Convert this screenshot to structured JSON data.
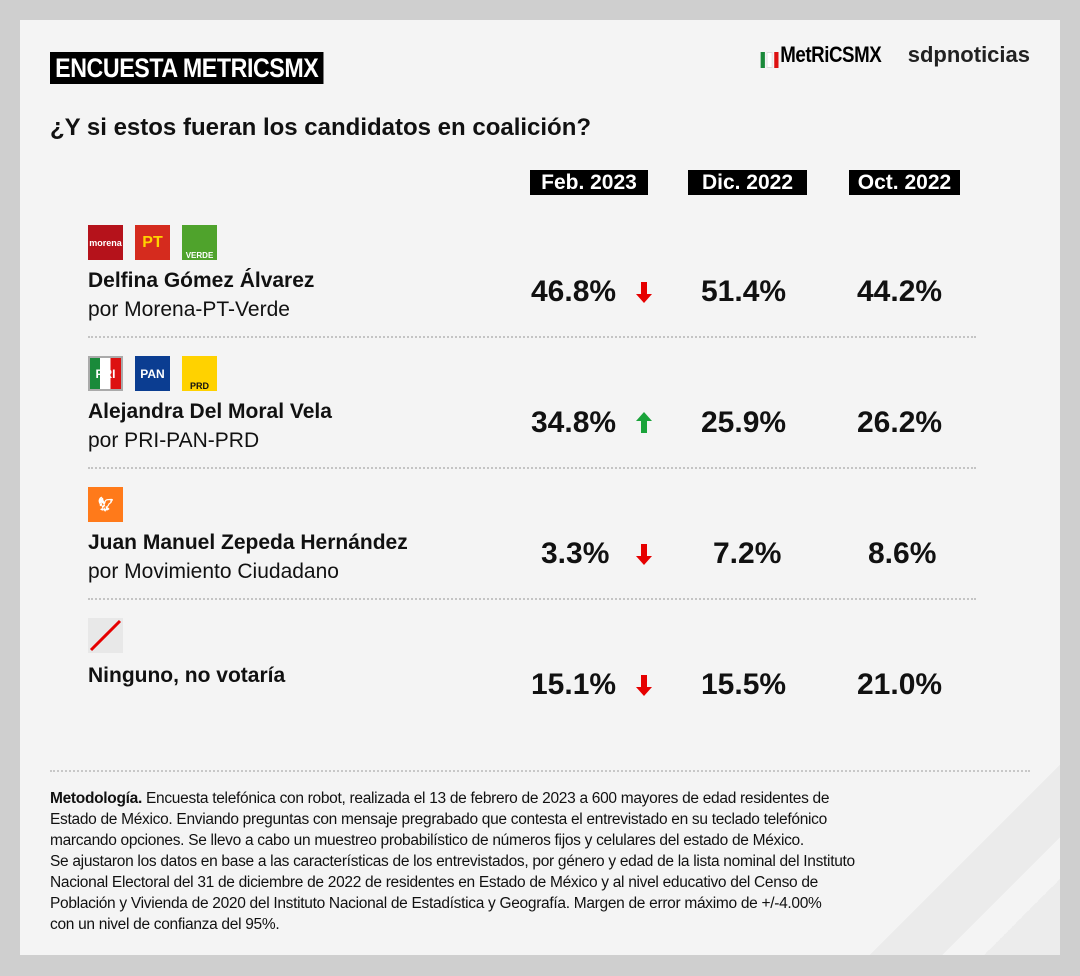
{
  "header": {
    "badge": "ENCUESTA METRICSMX",
    "logo_metrics": "MetRiCSMX",
    "logo_sdp": "sdpnoticias",
    "subtitle": "¿Y si estos fueran los candidatos en coalición?"
  },
  "colors": {
    "down": "#e60000",
    "up": "#1aa33a",
    "badge_bg": "#000000",
    "background": "#f4f4f4"
  },
  "chart_data": {
    "type": "table",
    "title": "¿Y si estos fueran los candidatos en coalición?",
    "columns": [
      "Feb. 2023",
      "Dic. 2022",
      "Oct. 2022"
    ],
    "rows": [
      {
        "name": "Delfina Gómez Álvarez",
        "party": "por Morena-PT-Verde",
        "logos": [
          "morena",
          "PT",
          "VERDE"
        ],
        "values": [
          "46.8%",
          "51.4%",
          "44.2%"
        ],
        "trend": "down"
      },
      {
        "name": "Alejandra Del Moral Vela",
        "party": "por PRI-PAN-PRD",
        "logos": [
          "PRI",
          "PAN",
          "PRD"
        ],
        "values": [
          "34.8%",
          "25.9%",
          "26.2%"
        ],
        "trend": "up"
      },
      {
        "name": "Juan Manuel Zepeda Hernández",
        "party": "por Movimiento Ciudadano",
        "logos": [
          "movimiento-ciudadano"
        ],
        "values": [
          "3.3%",
          "7.2%",
          "8.6%"
        ],
        "trend": "down"
      },
      {
        "name": "Ninguno, no votaría",
        "party": "",
        "logos": [
          "none-slash"
        ],
        "values": [
          "15.1%",
          "15.5%",
          "21.0%"
        ],
        "trend": "down"
      }
    ]
  },
  "methodology": {
    "label": "Metodología.",
    "lines": [
      " Encuesta telefónica con robot, realizada el 13 de febrero de 2023 a 600 mayores de edad residentes de",
      "Estado de México. Enviando preguntas con mensaje pregrabado que contesta el entrevistado en su teclado telefónico",
      "marcando opciones. Se llevo a cabo un muestreo probabilístico de números fijos y celulares del estado de México.",
      "Se ajustaron los datos en base a las características de los entrevistados, por género y edad de la lista nominal del Instituto",
      "Nacional Electoral del 31 de diciembre de 2022 de residentes en Estado de México y al nivel educativo del Censo de",
      "Población y Vivienda de 2020 del Instituto Nacional de Estadística y Geografía. Margen de error máximo de +/-4.00%",
      "con un nivel de confianza del 95%."
    ]
  }
}
